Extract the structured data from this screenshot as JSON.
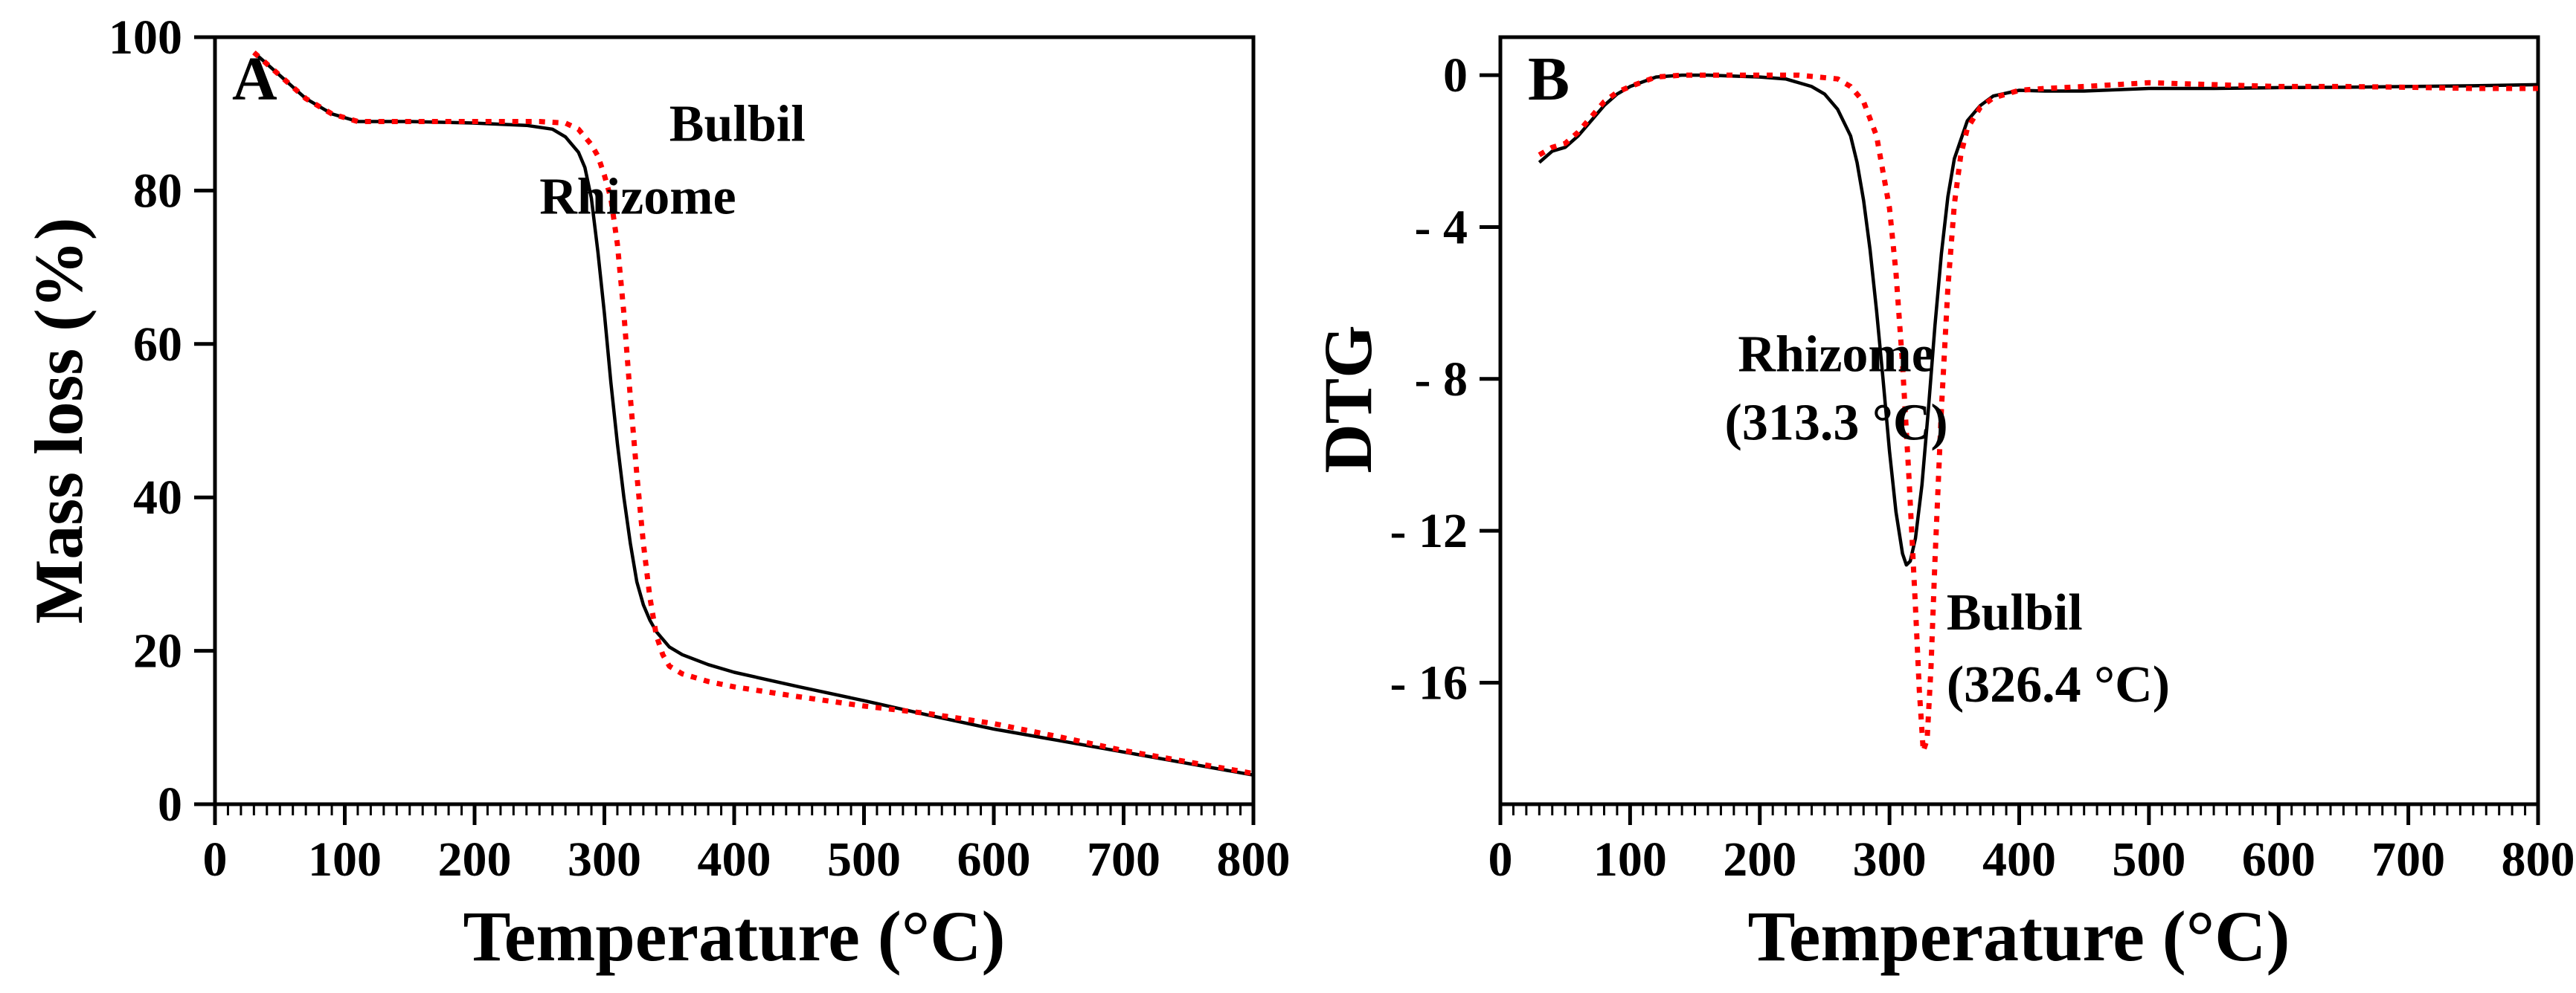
{
  "colors": {
    "rhizome": "#000000",
    "bulbil": "#ff0000",
    "axis": "#000000"
  },
  "chart_data": [
    {
      "type": "line",
      "panel_label": "A",
      "xlabel": "Temperature (°C)",
      "ylabel": "Mass loss (%)",
      "xlim": [
        0,
        800
      ],
      "ylim": [
        0,
        100
      ],
      "xticks": [
        0,
        100,
        200,
        300,
        400,
        500,
        600,
        700,
        800
      ],
      "xtick_labels": [
        "0",
        "100",
        "200",
        "300",
        "400",
        "500",
        "600",
        "700",
        "800"
      ],
      "yticks": [
        0,
        20,
        40,
        60,
        80,
        100
      ],
      "ytick_labels": [
        "0",
        "20",
        "40",
        "60",
        "80",
        "100"
      ],
      "grid": false,
      "series": [
        {
          "name": "Rhizome",
          "style": "solid",
          "x": [
            30,
            50,
            70,
            90,
            110,
            150,
            200,
            240,
            260,
            270,
            280,
            285,
            290,
            295,
            300,
            305,
            310,
            315,
            320,
            325,
            330,
            335,
            340,
            345,
            350,
            360,
            380,
            400,
            450,
            500,
            550,
            600,
            650,
            700,
            750,
            800
          ],
          "y": [
            98,
            95,
            92,
            90,
            89,
            89,
            88.8,
            88.5,
            88,
            87,
            85,
            83,
            79,
            72,
            64,
            55,
            47,
            40,
            34,
            29,
            26,
            24,
            22.5,
            21.5,
            20.5,
            19.5,
            18.2,
            17.2,
            15.3,
            13.5,
            11.6,
            9.8,
            8.3,
            6.8,
            5.3,
            3.8
          ]
        },
        {
          "name": "Bulbil",
          "style": "dotted",
          "x": [
            30,
            50,
            70,
            90,
            110,
            150,
            200,
            250,
            270,
            280,
            290,
            295,
            300,
            305,
            310,
            315,
            320,
            325,
            330,
            335,
            340,
            345,
            350,
            355,
            360,
            370,
            380,
            400,
            450,
            500,
            550,
            600,
            650,
            700,
            750,
            800
          ],
          "y": [
            98,
            95,
            92,
            90,
            89,
            89,
            89,
            89,
            88.8,
            88,
            86,
            84.5,
            82,
            79,
            73,
            64,
            53,
            43,
            34,
            27,
            22,
            19.5,
            18,
            17.5,
            17,
            16.5,
            16,
            15.3,
            14,
            12.8,
            11.8,
            10.5,
            8.8,
            7,
            5.5,
            4
          ]
        }
      ],
      "annotations": [
        {
          "text": "Bulbil",
          "x": 350,
          "y": 86.5
        },
        {
          "text": "Rhizome",
          "x": 250,
          "y": 77
        }
      ]
    },
    {
      "type": "line",
      "panel_label": "B",
      "xlabel": "Temperature (°C)",
      "ylabel": "DTG",
      "xlim": [
        0,
        800
      ],
      "ylim": [
        -19.2,
        1.0
      ],
      "xticks": [
        0,
        100,
        200,
        300,
        400,
        500,
        600,
        700,
        800
      ],
      "xtick_labels": [
        "0",
        "100",
        "200",
        "300",
        "400",
        "500",
        "600",
        "700",
        "800"
      ],
      "yticks": [
        0,
        -4,
        -8,
        -12,
        -16
      ],
      "ytick_labels": [
        "0",
        "- 4",
        "- 8",
        "- 12",
        "- 16"
      ],
      "grid": false,
      "series": [
        {
          "name": "Rhizome",
          "style": "solid",
          "x": [
            30,
            40,
            50,
            60,
            70,
            80,
            90,
            100,
            120,
            140,
            160,
            200,
            220,
            240,
            250,
            260,
            270,
            275,
            280,
            285,
            290,
            295,
            300,
            305,
            310,
            313,
            316,
            320,
            325,
            330,
            335,
            340,
            345,
            350,
            360,
            370,
            380,
            400,
            420,
            450,
            500,
            550,
            600,
            650,
            700,
            750,
            800
          ],
          "y": [
            -2.3,
            -2.0,
            -1.9,
            -1.6,
            -1.2,
            -0.8,
            -0.5,
            -0.3,
            -0.05,
            0.0,
            0.0,
            -0.05,
            -0.1,
            -0.3,
            -0.5,
            -0.9,
            -1.6,
            -2.3,
            -3.3,
            -4.6,
            -6.2,
            -8.0,
            -9.9,
            -11.5,
            -12.6,
            -12.9,
            -12.8,
            -12.2,
            -10.8,
            -8.8,
            -6.6,
            -4.7,
            -3.2,
            -2.2,
            -1.2,
            -0.8,
            -0.55,
            -0.4,
            -0.42,
            -0.42,
            -0.35,
            -0.35,
            -0.33,
            -0.32,
            -0.3,
            -0.28,
            -0.25
          ]
        },
        {
          "name": "Bulbil",
          "style": "dotted",
          "x": [
            30,
            40,
            50,
            60,
            70,
            80,
            90,
            100,
            120,
            140,
            160,
            200,
            230,
            260,
            270,
            280,
            290,
            300,
            305,
            310,
            315,
            320,
            323,
            326,
            329,
            332,
            335,
            340,
            345,
            350,
            355,
            360,
            370,
            380,
            400,
            420,
            450,
            500,
            550,
            600,
            650,
            700,
            750,
            800
          ],
          "y": [
            -2.1,
            -1.9,
            -1.8,
            -1.5,
            -1.1,
            -0.7,
            -0.45,
            -0.3,
            -0.05,
            0.0,
            0.0,
            0.0,
            0.0,
            -0.1,
            -0.3,
            -0.7,
            -1.6,
            -3.5,
            -5.2,
            -7.6,
            -10.6,
            -14.0,
            -16.2,
            -17.8,
            -17.5,
            -15.6,
            -12.8,
            -8.8,
            -5.6,
            -3.4,
            -2.1,
            -1.4,
            -0.85,
            -0.6,
            -0.4,
            -0.35,
            -0.3,
            -0.2,
            -0.25,
            -0.3,
            -0.3,
            -0.32,
            -0.35,
            -0.35
          ]
        }
      ],
      "annotations": [
        {
          "text": "Rhizome",
          "x": 259,
          "y": -7.8
        },
        {
          "text": "(313.3 °C)",
          "x": 259,
          "y": -9.6
        },
        {
          "text": "Bulbil",
          "x": 344,
          "y": -14.6
        },
        {
          "text": "(326.4 °C)",
          "x": 344,
          "y": -16.5
        }
      ]
    }
  ]
}
